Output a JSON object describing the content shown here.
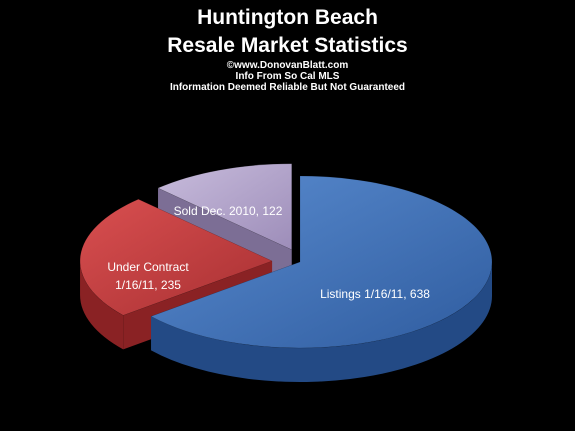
{
  "header": {
    "title_line1": "Huntington Beach",
    "title_line2": "Resale Market Statistics",
    "credit": "©www.DonovanBlatt.com",
    "source": "Info  From So Cal MLS",
    "disclaimer": "Information Deemed Reliable But Not Guaranteed"
  },
  "chart_data": {
    "type": "pie",
    "title": "Huntington Beach Resale Market Statistics",
    "labels_style": "category, value",
    "slices": [
      {
        "label": "Listings 1/16/11",
        "value": 638,
        "display": "Listings 1/16/11, 638",
        "color": "#3d6fb5"
      },
      {
        "label": "Under Contract 1/16/11",
        "value": 235,
        "display_lines": [
          "Under Contract",
          "1/16/11, 235"
        ],
        "color": "#c0393b"
      },
      {
        "label": "Sold Dec.  2010",
        "value": 122,
        "display": "Sold Dec.  2010, 122",
        "color": "#b4a6cc"
      }
    ],
    "legend": "none",
    "exploded": true,
    "3d": true
  }
}
